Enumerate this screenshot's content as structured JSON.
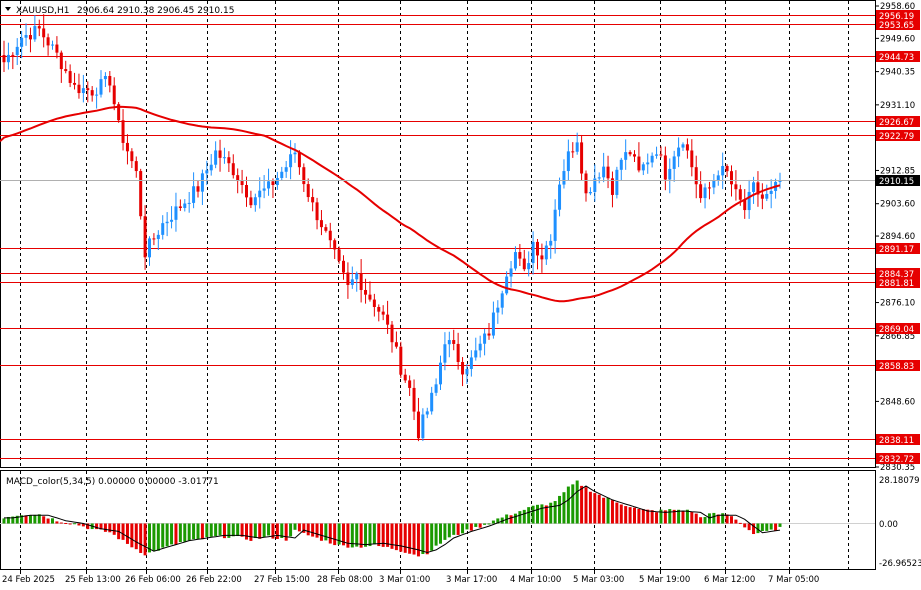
{
  "main": {
    "symbol": "XAUUSD,H1",
    "ohlc": "2906.64 2910.38 2906.45 2910.15",
    "price_axis": [
      "2958.60",
      "2949.60",
      "2940.35",
      "2931.10",
      "2912.85",
      "2903.60",
      "2894.60",
      "2876.10",
      "2866.85",
      "2848.60",
      "2830.35"
    ],
    "price_levels": [
      "2956.19",
      "2953.65",
      "2944.73",
      "2926.67",
      "2922.79",
      "2891.17",
      "2884.37",
      "2881.81",
      "2869.04",
      "2858.83",
      "2838.11",
      "2832.72"
    ],
    "current_price": "2910.15",
    "level_color": "#e60000",
    "up_color": "#1e90ff",
    "down_color": "#e60000",
    "ma_color": "#e60000"
  },
  "macd": {
    "title": "MACD_color(5,34,5) 0.00000 0.00000 -3.01771",
    "axis": [
      "28.18079",
      "0.00",
      "-26.96523"
    ],
    "up_color": "#1a9900",
    "down_color": "#e60000",
    "signal_color": "#000000"
  },
  "time_axis": [
    "24 Feb 2025",
    "25 Feb 13:00",
    "26 Feb 06:00",
    "26 Feb 22:00",
    "27 Feb 15:00",
    "28 Feb 08:00",
    "3 Mar 01:00",
    "3 Mar 17:00",
    "4 Mar 10:00",
    "5 Mar 03:00",
    "5 Mar 19:00",
    "6 Mar 12:00",
    "7 Mar 05:00"
  ],
  "chart_data": {
    "type": "candlestick",
    "timeframe": "H1",
    "ylim": [
      2830.35,
      2958.6
    ],
    "close_path": [
      [
        0,
        2943
      ],
      [
        4,
        2950
      ],
      [
        8,
        2952
      ],
      [
        12,
        2945
      ],
      [
        16,
        2936
      ],
      [
        20,
        2935
      ],
      [
        24,
        2938
      ],
      [
        26,
        2925
      ],
      [
        30,
        2912
      ],
      [
        32,
        2890
      ],
      [
        36,
        2898
      ],
      [
        40,
        2903
      ],
      [
        44,
        2908
      ],
      [
        48,
        2918
      ],
      [
        52,
        2913
      ],
      [
        56,
        2905
      ],
      [
        60,
        2908
      ],
      [
        64,
        2914
      ],
      [
        66,
        2918
      ],
      [
        68,
        2910
      ],
      [
        70,
        2903
      ],
      [
        72,
        2898
      ],
      [
        74,
        2892
      ],
      [
        76,
        2886
      ],
      [
        78,
        2880
      ],
      [
        80,
        2884
      ],
      [
        82,
        2879
      ],
      [
        84,
        2876
      ],
      [
        86,
        2872
      ],
      [
        88,
        2866
      ],
      [
        90,
        2858
      ],
      [
        92,
        2852
      ],
      [
        94,
        2840
      ],
      [
        96,
        2846
      ],
      [
        98,
        2853
      ],
      [
        100,
        2866
      ],
      [
        102,
        2863
      ],
      [
        104,
        2858
      ],
      [
        106,
        2860
      ],
      [
        108,
        2864
      ],
      [
        110,
        2868
      ],
      [
        112,
        2876
      ],
      [
        114,
        2885
      ],
      [
        116,
        2890
      ],
      [
        118,
        2884
      ],
      [
        120,
        2893
      ],
      [
        122,
        2889
      ],
      [
        124,
        2895
      ],
      [
        126,
        2910
      ],
      [
        128,
        2917
      ],
      [
        130,
        2922
      ],
      [
        132,
        2906
      ],
      [
        134,
        2911
      ],
      [
        136,
        2914
      ],
      [
        138,
        2908
      ],
      [
        140,
        2916
      ],
      [
        142,
        2918
      ],
      [
        144,
        2912
      ],
      [
        146,
        2916
      ],
      [
        148,
        2919
      ],
      [
        150,
        2912
      ],
      [
        152,
        2918
      ],
      [
        154,
        2922
      ],
      [
        156,
        2914
      ],
      [
        158,
        2905
      ],
      [
        160,
        2908
      ],
      [
        162,
        2913
      ],
      [
        164,
        2912
      ],
      [
        166,
        2906
      ],
      [
        168,
        2902
      ],
      [
        170,
        2908
      ],
      [
        172,
        2905
      ],
      [
        174,
        2906
      ],
      [
        176,
        2910
      ]
    ],
    "macd_path": [
      [
        0,
        4
      ],
      [
        4,
        6
      ],
      [
        8,
        6
      ],
      [
        12,
        2
      ],
      [
        16,
        0
      ],
      [
        20,
        -4
      ],
      [
        24,
        -6
      ],
      [
        28,
        -14
      ],
      [
        32,
        -21
      ],
      [
        36,
        -17
      ],
      [
        40,
        -13
      ],
      [
        44,
        -11
      ],
      [
        48,
        -9
      ],
      [
        52,
        -9
      ],
      [
        56,
        -11
      ],
      [
        60,
        -9
      ],
      [
        64,
        -11
      ],
      [
        66,
        -5
      ],
      [
        68,
        -7
      ],
      [
        72,
        -11
      ],
      [
        76,
        -15
      ],
      [
        80,
        -16
      ],
      [
        84,
        -15
      ],
      [
        88,
        -17
      ],
      [
        92,
        -20
      ],
      [
        94,
        -22
      ],
      [
        96,
        -20
      ],
      [
        98,
        -16
      ],
      [
        100,
        -11
      ],
      [
        104,
        -6
      ],
      [
        108,
        -2
      ],
      [
        112,
        3
      ],
      [
        116,
        7
      ],
      [
        120,
        11
      ],
      [
        124,
        13
      ],
      [
        126,
        17
      ],
      [
        128,
        23
      ],
      [
        130,
        27
      ],
      [
        132,
        23
      ],
      [
        136,
        17
      ],
      [
        140,
        13
      ],
      [
        144,
        9
      ],
      [
        148,
        8
      ],
      [
        152,
        9
      ],
      [
        156,
        8
      ],
      [
        158,
        4
      ],
      [
        160,
        6
      ],
      [
        164,
        6
      ],
      [
        166,
        3
      ],
      [
        168,
        -2
      ],
      [
        170,
        -7
      ],
      [
        174,
        -5
      ],
      [
        176,
        -3
      ]
    ]
  }
}
